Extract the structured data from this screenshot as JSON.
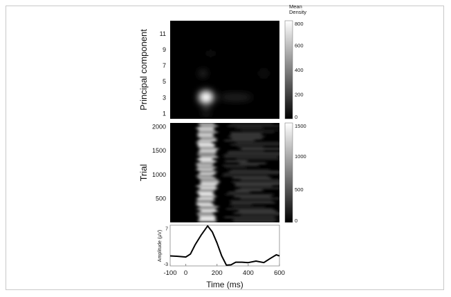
{
  "chart_data": [
    {
      "type": "heatmap",
      "ylabel": "Principal component",
      "yticks": [
        "1",
        "3",
        "5",
        "7",
        "9",
        "11"
      ],
      "ylim": [
        0.3,
        12.6
      ],
      "xlim": [
        -100,
        600
      ],
      "colorbar": {
        "title": "Mean Density",
        "ticks": [
          "0",
          "200",
          "400",
          "600",
          "800"
        ],
        "range": [
          0,
          800
        ],
        "colormap": "gray"
      },
      "peaks": [
        {
          "x": 130,
          "y": 3,
          "value": 800
        },
        {
          "x": 320,
          "y": 3,
          "value": 120
        },
        {
          "x": 110,
          "y": 6,
          "value": 150
        },
        {
          "x": 160,
          "y": 8.5,
          "value": 60
        },
        {
          "x": 500,
          "y": 6,
          "value": 80
        },
        {
          "x": 130,
          "y": 1,
          "value": 120
        }
      ]
    },
    {
      "type": "heatmap",
      "ylabel": "Trial",
      "yticks": [
        "500",
        "1000",
        "1500",
        "2000"
      ],
      "ylim": [
        0,
        2070
      ],
      "xlim": [
        -100,
        600
      ],
      "colorbar": {
        "ticks": [
          "0",
          "500",
          "1000",
          "1500"
        ],
        "range": [
          0,
          1500
        ],
        "colormap": "gray"
      },
      "band": {
        "x_center": 130,
        "x_width": 120,
        "value": 1200
      }
    },
    {
      "type": "line",
      "xlabel": "Time (ms)",
      "ylabel": "Amplitude (µV)",
      "xticks": [
        "-100",
        "0",
        "200",
        "400",
        "600"
      ],
      "yticks": [
        "-3",
        "7"
      ],
      "xlim": [
        -100,
        600
      ],
      "ylim": [
        -3.2,
        7.8
      ],
      "x": [
        -100,
        -50,
        0,
        30,
        60,
        100,
        140,
        170,
        200,
        230,
        260,
        290,
        320,
        360,
        400,
        450,
        500,
        540,
        580,
        600
      ],
      "y": [
        -0.5,
        -0.6,
        -0.8,
        0,
        2.5,
        5.2,
        7.6,
        6,
        3,
        -0.5,
        -3,
        -2.9,
        -2.2,
        -2.2,
        -2.3,
        -1.9,
        -2.3,
        -1.2,
        -0.2,
        -0.5
      ]
    }
  ]
}
